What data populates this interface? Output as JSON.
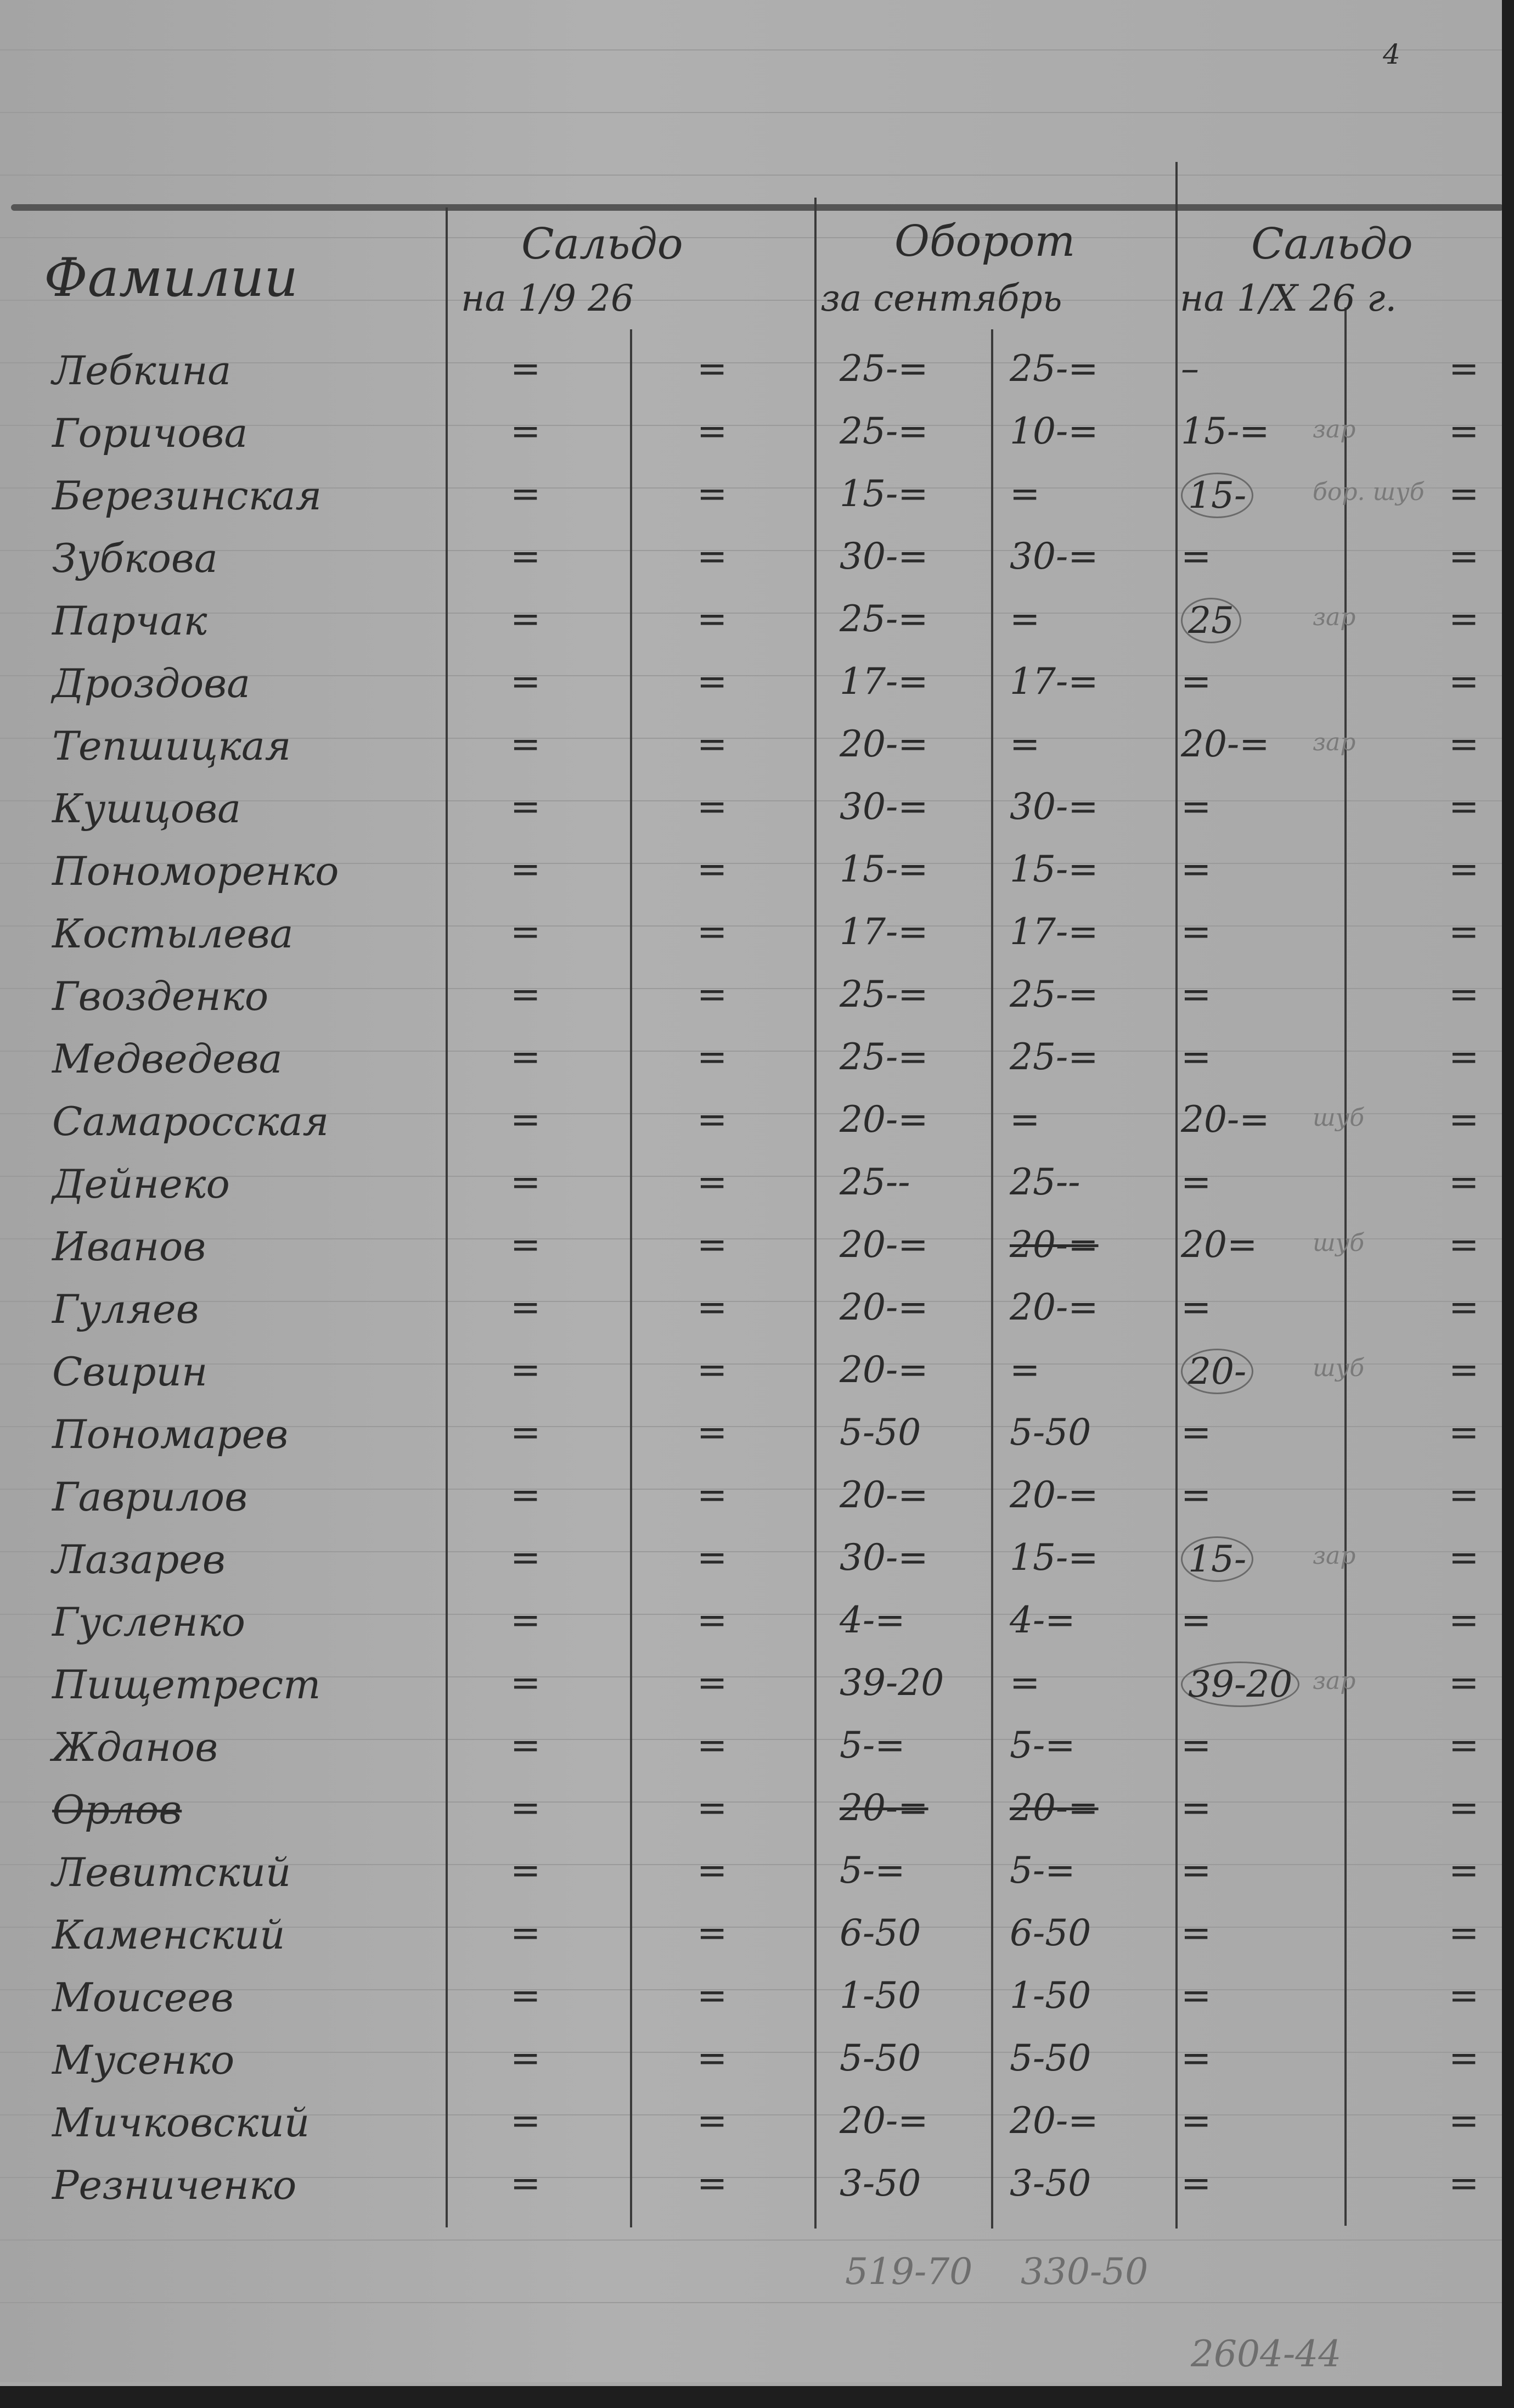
{
  "corner_mark": "4",
  "header": {
    "name_col": "Фамилии",
    "saldo_start": {
      "line1": "Сальдо",
      "line2": "на 1/9 26"
    },
    "turnover": {
      "line1": "Оборот",
      "line2": "за сентябрь"
    },
    "saldo_end": {
      "line1": "Сальдо",
      "line2": "на 1/X 26 г."
    }
  },
  "rows": [
    {
      "name": "Лебкина",
      "s1d": "=",
      "s1c": "=",
      "od": "25-=",
      "oc": "25-=",
      "s2d": "–",
      "s2c": "="
    },
    {
      "name": "Горичова",
      "s1d": "=",
      "s1c": "=",
      "od": "25-=",
      "oc": "10-=",
      "s2d": "15-=",
      "s2c": "=",
      "note": "зар"
    },
    {
      "name": "Березинская",
      "s1d": "=",
      "s1c": "=",
      "od": "15-=",
      "oc": "=",
      "s2d": "15-",
      "s2c": "=",
      "circled": true,
      "note": "бор. шуб"
    },
    {
      "name": "Зубкова",
      "s1d": "=",
      "s1c": "=",
      "od": "30-=",
      "oc": "30-=",
      "s2d": "=",
      "s2c": "="
    },
    {
      "name": "Парчак",
      "s1d": "=",
      "s1c": "=",
      "od": "25-=",
      "oc": "=",
      "s2d": "25",
      "s2c": "=",
      "circled": true,
      "note": "зар"
    },
    {
      "name": "Дроздова",
      "s1d": "=",
      "s1c": "=",
      "od": "17-=",
      "oc": "17-=",
      "s2d": "=",
      "s2c": "="
    },
    {
      "name": "Тепшицкая",
      "s1d": "=",
      "s1c": "=",
      "od": "20-=",
      "oc": "=",
      "s2d": "20-=",
      "s2c": "=",
      "note": "зар"
    },
    {
      "name": "Кушцова",
      "s1d": "=",
      "s1c": "=",
      "od": "30-=",
      "oc": "30-=",
      "s2d": "=",
      "s2c": "="
    },
    {
      "name": "Пономоренко",
      "s1d": "=",
      "s1c": "=",
      "od": "15-=",
      "oc": "15-=",
      "s2d": "=",
      "s2c": "="
    },
    {
      "name": "Костылева",
      "s1d": "=",
      "s1c": "=",
      "od": "17-=",
      "oc": "17-=",
      "s2d": "=",
      "s2c": "="
    },
    {
      "name": "Гвозденко",
      "s1d": "=",
      "s1c": "=",
      "od": "25-=",
      "oc": "25-=",
      "s2d": "=",
      "s2c": "="
    },
    {
      "name": "Медведева",
      "s1d": "=",
      "s1c": "=",
      "od": "25-=",
      "oc": "25-=",
      "s2d": "=",
      "s2c": "="
    },
    {
      "name": "Самаросская",
      "s1d": "=",
      "s1c": "=",
      "od": "20-=",
      "oc": "=",
      "s2d": "20-=",
      "s2c": "=",
      "note": "шуб"
    },
    {
      "name": "Дейнеко",
      "s1d": "=",
      "s1c": "=",
      "od": "25--",
      "oc": "25--",
      "s2d": "=",
      "s2c": "="
    },
    {
      "name": "Иванов",
      "s1d": "=",
      "s1c": "=",
      "od": "20-=",
      "oc": "20-=",
      "oc_struck": true,
      "s2d": "20=",
      "s2c": "=",
      "note": "шуб"
    },
    {
      "name": "Гуляев",
      "s1d": "=",
      "s1c": "=",
      "od": "20-=",
      "oc": "20-=",
      "s2d": "=",
      "s2c": "="
    },
    {
      "name": "Свирин",
      "s1d": "=",
      "s1c": "=",
      "od": "20-=",
      "oc": "=",
      "s2d": "20-",
      "s2c": "=",
      "circled": true,
      "note": "шуб"
    },
    {
      "name": "Пономарев",
      "s1d": "=",
      "s1c": "=",
      "od": "5-50",
      "oc": "5-50",
      "s2d": "=",
      "s2c": "="
    },
    {
      "name": "Гаврилов",
      "s1d": "=",
      "s1c": "=",
      "od": "20-=",
      "oc": "20-=",
      "s2d": "=",
      "s2c": "="
    },
    {
      "name": "Лазарев",
      "s1d": "=",
      "s1c": "=",
      "od": "30-=",
      "oc": "15-=",
      "s2d": "15-",
      "s2c": "=",
      "circled": true,
      "note": "зар"
    },
    {
      "name": "Гусленко",
      "s1d": "=",
      "s1c": "=",
      "od": "4-=",
      "oc": "4-=",
      "s2d": "=",
      "s2c": "="
    },
    {
      "name": "Пищетрест",
      "s1d": "=",
      "s1c": "=",
      "od": "39-20",
      "oc": "=",
      "s2d": "39-20",
      "s2c": "=",
      "circled": true,
      "note": "зар"
    },
    {
      "name": "Жданов",
      "s1d": "=",
      "s1c": "=",
      "od": "5-=",
      "oc": "5-=",
      "s2d": "=",
      "s2c": "="
    },
    {
      "name": "Орлов",
      "name_struck": true,
      "s1d": "=",
      "s1c": "=",
      "od": "20-=",
      "od_struck": true,
      "oc": "20-=",
      "oc_struck": true,
      "s2d": "=",
      "s2c": "="
    },
    {
      "name": "Левитский",
      "s1d": "=",
      "s1c": "=",
      "od": "5-=",
      "oc": "5-=",
      "s2d": "=",
      "s2c": "="
    },
    {
      "name": "Каменский",
      "s1d": "=",
      "s1c": "=",
      "od": "6-50",
      "oc": "6-50",
      "s2d": "=",
      "s2c": "="
    },
    {
      "name": "Моисеев",
      "s1d": "=",
      "s1c": "=",
      "od": "1-50",
      "oc": "1-50",
      "s2d": "=",
      "s2c": "="
    },
    {
      "name": "Мусенко",
      "s1d": "=",
      "s1c": "=",
      "od": "5-50",
      "oc": "5-50",
      "s2d": "=",
      "s2c": "="
    },
    {
      "name": "Мичковский",
      "s1d": "=",
      "s1c": "=",
      "od": "20-=",
      "oc": "20-=",
      "s2d": "=",
      "s2c": "="
    },
    {
      "name": "Резниченко",
      "s1d": "=",
      "s1c": "=",
      "od": "3-50",
      "oc": "3-50",
      "s2d": "=",
      "s2c": "="
    }
  ],
  "totals": {
    "turnover_debit": "519-70",
    "turnover_credit": "330-50"
  },
  "archive_number": "2604-44"
}
